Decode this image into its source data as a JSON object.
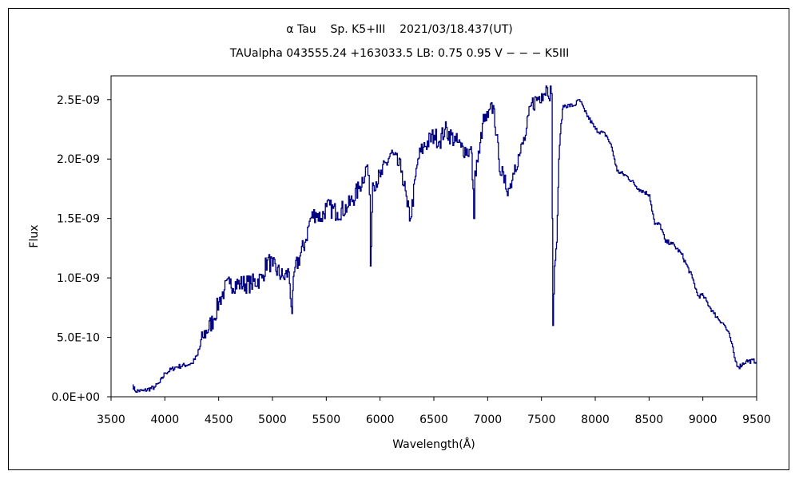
{
  "chart_data": {
    "type": "line",
    "title": "α Tau    Sp. K5+III    2021/03/18.437(UT)",
    "subtitle": "TAUalpha 043555.24 +163033.5 LB: 0.75 0.95 V − − − K5III",
    "xlabel": "Wavelength(Å)",
    "ylabel": "Flux",
    "xlim": [
      3500,
      9500
    ],
    "ylim": [
      0,
      2.7e-09
    ],
    "xticks": [
      3500,
      4000,
      4500,
      5000,
      5500,
      6000,
      6500,
      7000,
      7500,
      8000,
      8500,
      9000,
      9500
    ],
    "yticks": [
      0,
      5e-10,
      1e-09,
      1.5e-09,
      2e-09,
      2.5e-09
    ],
    "ytick_labels": [
      "0.0E+00",
      "5.0E-10",
      "1.0E-09",
      "1.5E-09",
      "2.0E-09",
      "2.5E-09"
    ],
    "grid": false,
    "series_color": "#000080",
    "series": [
      {
        "name": "spectrum",
        "x": [
          3700,
          3720,
          3800,
          3900,
          3950,
          4000,
          4100,
          4250,
          4300,
          4350,
          4450,
          4500,
          4550,
          4600,
          4700,
          4800,
          4900,
          4950,
          5000,
          5100,
          5150,
          5180,
          5200,
          5300,
          5350,
          5400,
          5450,
          5500,
          5600,
          5700,
          5800,
          5880,
          5900,
          5910,
          5930,
          6000,
          6100,
          6200,
          6250,
          6280,
          6350,
          6400,
          6500,
          6550,
          6600,
          6700,
          6750,
          6850,
          6870,
          6880,
          6920,
          6950,
          7000,
          7050,
          7080,
          7100,
          7150,
          7200,
          7250,
          7300,
          7350,
          7400,
          7500,
          7550,
          7590,
          7600,
          7605,
          7620,
          7640,
          7660,
          7680,
          7700,
          7800,
          7850,
          7900,
          8000,
          8100,
          8150,
          8200,
          8300,
          8400,
          8500,
          8550,
          8600,
          8650,
          8700,
          8800,
          8900,
          8950,
          9000,
          9100,
          9200,
          9250,
          9300,
          9330,
          9400,
          9500
        ],
        "y_e9": [
          0.1,
          0.05,
          0.05,
          0.08,
          0.12,
          0.2,
          0.25,
          0.28,
          0.35,
          0.5,
          0.65,
          0.8,
          0.9,
          0.95,
          0.95,
          0.95,
          1.0,
          1.15,
          1.1,
          1.0,
          1.05,
          0.7,
          1.05,
          1.3,
          1.5,
          1.55,
          1.5,
          1.6,
          1.55,
          1.6,
          1.75,
          1.95,
          1.7,
          1.1,
          1.8,
          1.85,
          2.05,
          1.9,
          1.6,
          1.5,
          2.0,
          2.1,
          2.2,
          2.15,
          2.25,
          2.15,
          2.1,
          2.05,
          1.5,
          1.9,
          2.05,
          2.3,
          2.35,
          2.45,
          2.2,
          2.0,
          1.8,
          1.75,
          1.95,
          2.05,
          2.2,
          2.45,
          2.55,
          2.6,
          2.55,
          1.5,
          0.6,
          1.1,
          1.3,
          2.0,
          2.3,
          2.45,
          2.45,
          2.5,
          2.4,
          2.25,
          2.2,
          2.1,
          1.9,
          1.85,
          1.75,
          1.7,
          1.45,
          1.45,
          1.3,
          1.3,
          1.2,
          1.0,
          0.85,
          0.85,
          0.7,
          0.6,
          0.5,
          0.3,
          0.25,
          0.3,
          0.3
        ]
      }
    ]
  }
}
